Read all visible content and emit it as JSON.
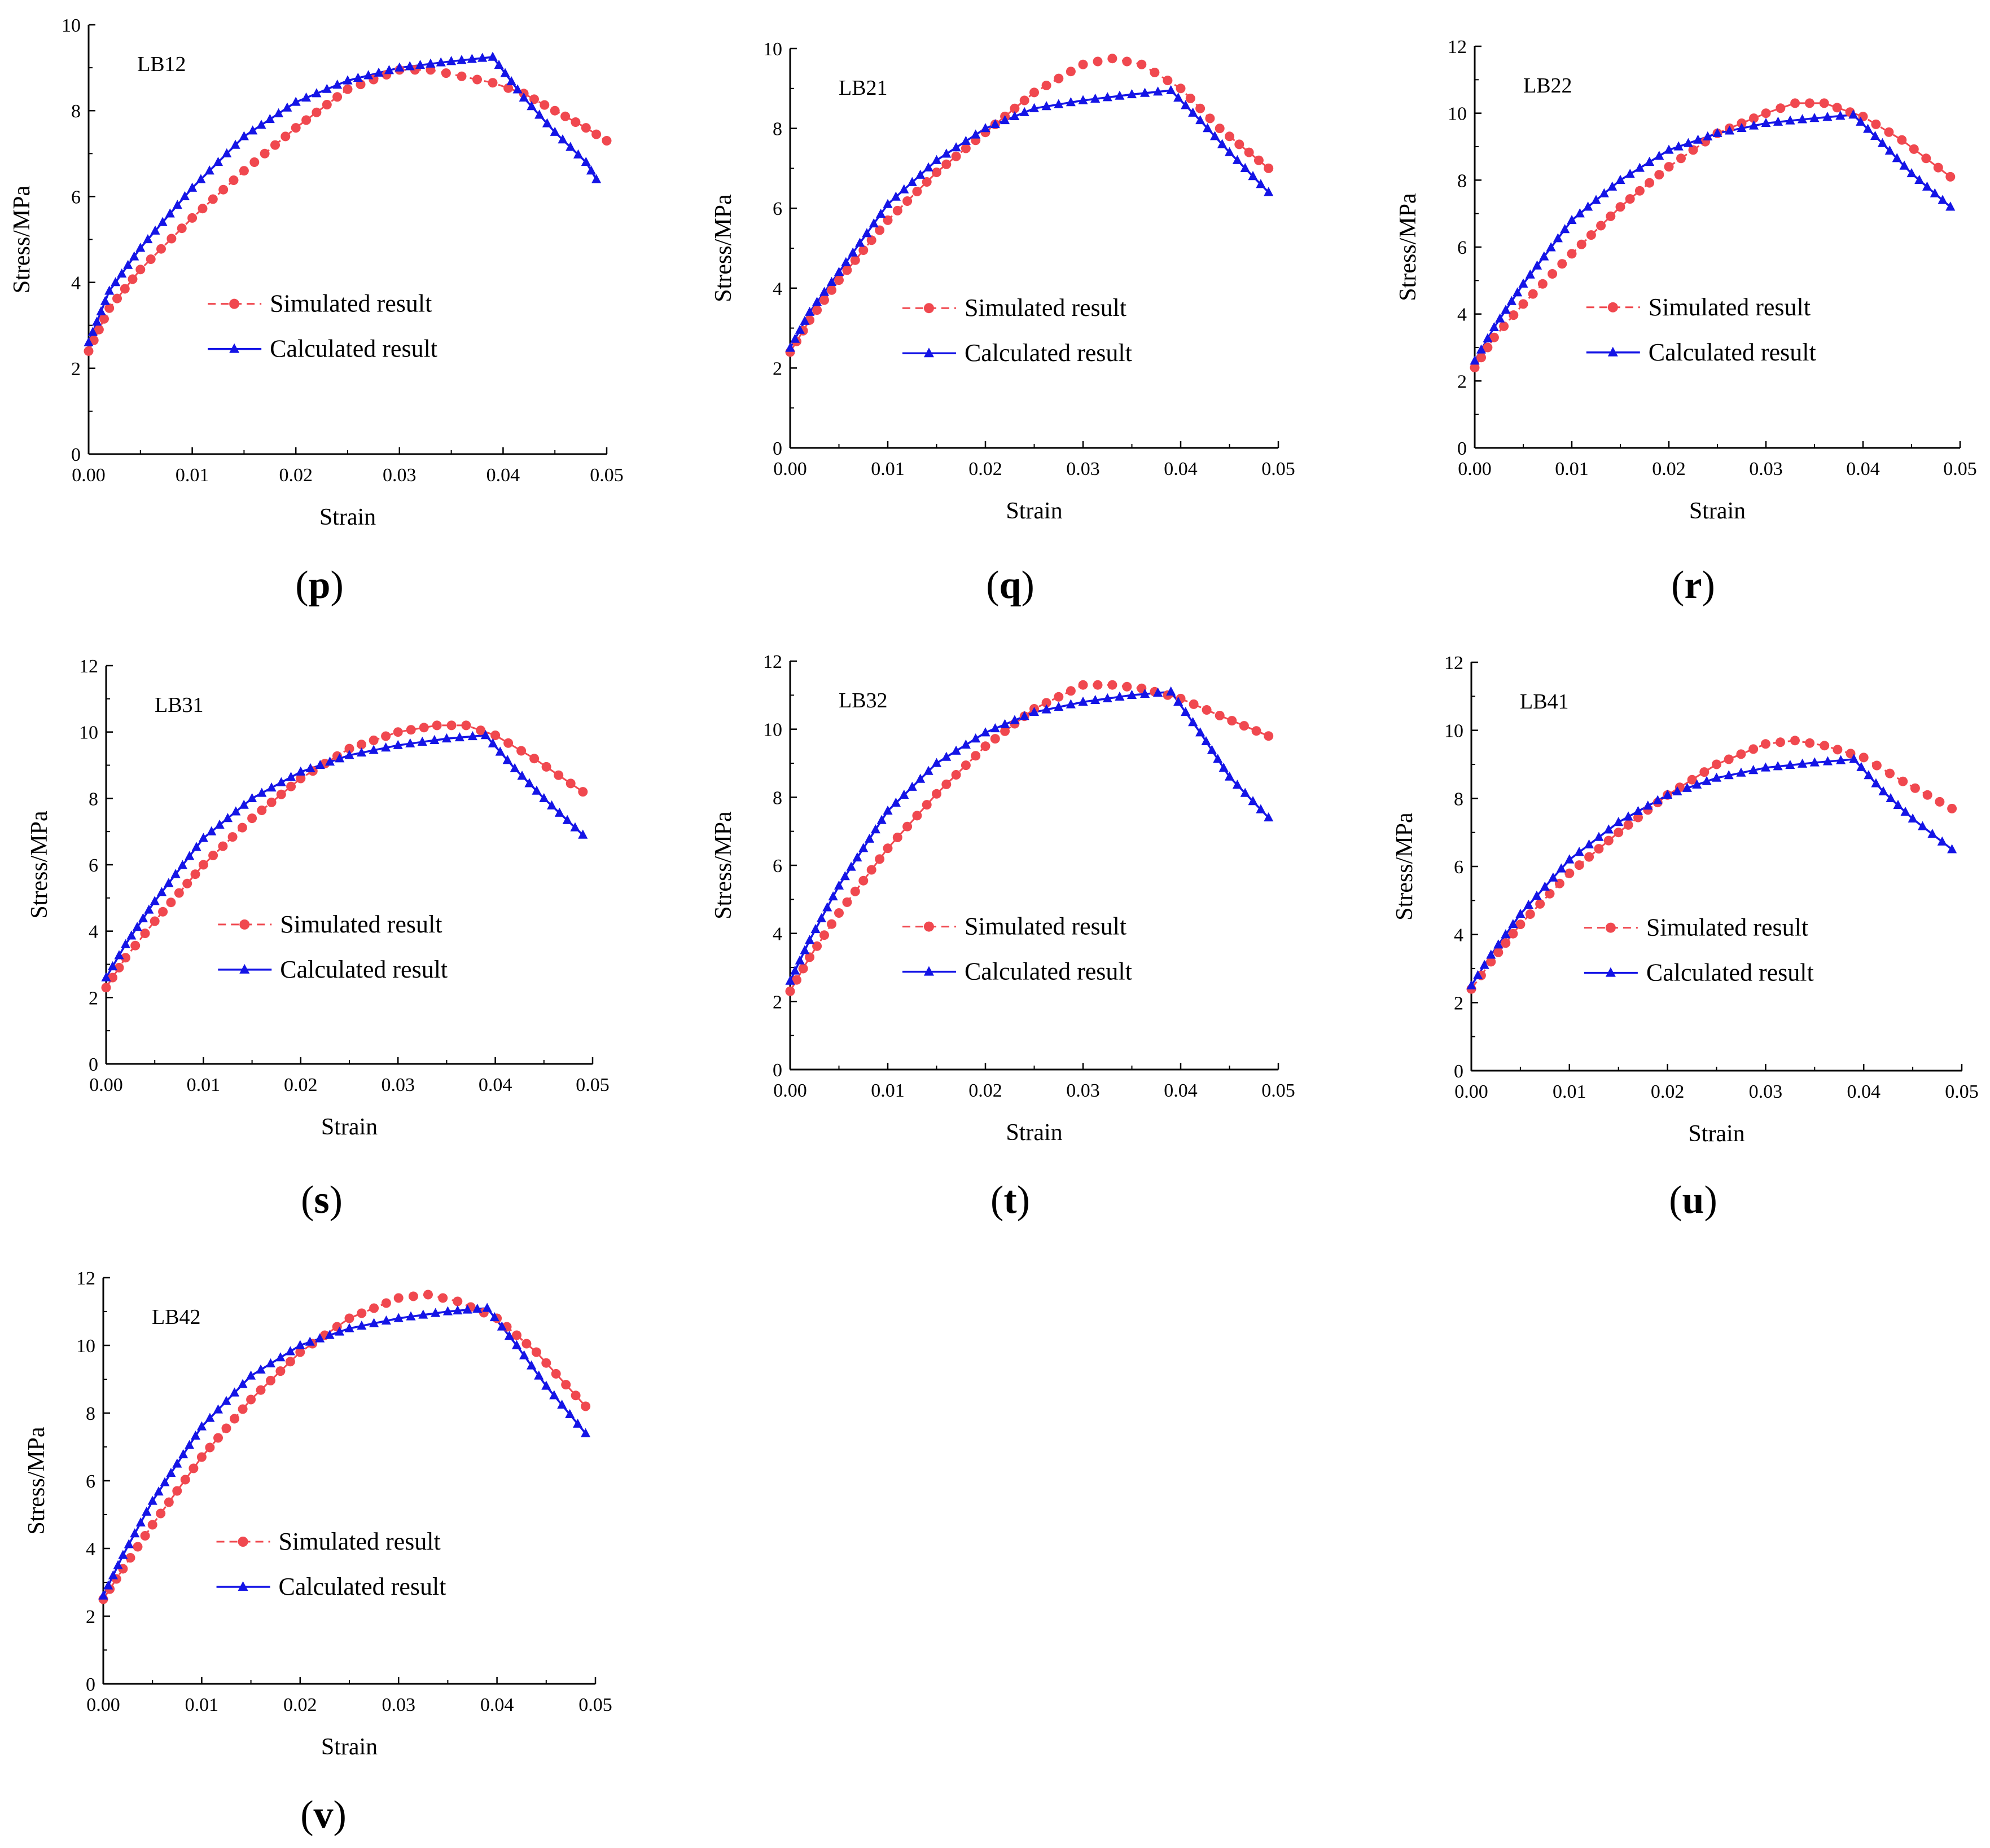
{
  "colors": {
    "simulated": "#f0484f",
    "calculated": "#1414e6",
    "axis": "#000000"
  },
  "legend": {
    "simulated_label": "Simulated result",
    "calculated_label": "Calculated result"
  },
  "axis_labels": {
    "x": "Strain",
    "y": "Stress/MPa"
  },
  "chart_data": [
    {
      "type": "line",
      "panel": "p",
      "specimen": "LB12",
      "xlabel": "Strain",
      "ylabel": "Stress/MPa",
      "xlim": [
        0,
        0.05
      ],
      "ylim": [
        0,
        10
      ],
      "xticks": [
        "0.00",
        "0.01",
        "0.02",
        "0.03",
        "0.04",
        "0.05"
      ],
      "yticks": [
        "0",
        "2",
        "4",
        "6",
        "8",
        "10"
      ],
      "series": [
        {
          "name": "Simulated result",
          "x": [
            0.0,
            0.002,
            0.005,
            0.01,
            0.015,
            0.02,
            0.025,
            0.03,
            0.033,
            0.036,
            0.039,
            0.042,
            0.045,
            0.048,
            0.05
          ],
          "y": [
            2.4,
            3.4,
            4.3,
            5.5,
            6.6,
            7.6,
            8.5,
            8.95,
            8.95,
            8.8,
            8.65,
            8.4,
            8.0,
            7.6,
            7.3
          ]
        },
        {
          "name": "Calculated result",
          "x": [
            0.0,
            0.002,
            0.005,
            0.01,
            0.015,
            0.02,
            0.025,
            0.03,
            0.035,
            0.039,
            0.042,
            0.045,
            0.048,
            0.049
          ],
          "y": [
            2.6,
            3.8,
            4.8,
            6.2,
            7.4,
            8.2,
            8.7,
            9.0,
            9.15,
            9.25,
            8.3,
            7.5,
            6.8,
            6.4
          ]
        }
      ]
    },
    {
      "type": "line",
      "panel": "q",
      "specimen": "LB21",
      "xlabel": "Strain",
      "ylabel": "Stress/MPa",
      "xlim": [
        0,
        0.05
      ],
      "ylim": [
        0,
        10
      ],
      "xticks": [
        "0.00",
        "0.01",
        "0.02",
        "0.03",
        "0.04",
        "0.05"
      ],
      "yticks": [
        "0",
        "2",
        "4",
        "6",
        "8",
        "10"
      ],
      "series": [
        {
          "name": "Simulated result",
          "x": [
            0.0,
            0.002,
            0.005,
            0.01,
            0.015,
            0.02,
            0.025,
            0.03,
            0.033,
            0.036,
            0.04,
            0.044,
            0.049
          ],
          "y": [
            2.4,
            3.2,
            4.2,
            5.7,
            6.9,
            7.9,
            8.9,
            9.6,
            9.75,
            9.6,
            9.0,
            8.0,
            7.0
          ]
        },
        {
          "name": "Calculated result",
          "x": [
            0.0,
            0.002,
            0.005,
            0.01,
            0.015,
            0.02,
            0.025,
            0.03,
            0.035,
            0.039,
            0.042,
            0.045,
            0.049
          ],
          "y": [
            2.5,
            3.4,
            4.4,
            6.1,
            7.2,
            8.0,
            8.5,
            8.7,
            8.85,
            8.95,
            8.2,
            7.4,
            6.4
          ]
        }
      ]
    },
    {
      "type": "line",
      "panel": "r",
      "specimen": "LB22",
      "xlabel": "Strain",
      "ylabel": "Stress/MPa",
      "xlim": [
        0,
        0.05
      ],
      "ylim": [
        0,
        12
      ],
      "xticks": [
        "0.00",
        "0.01",
        "0.02",
        "0.03",
        "0.04",
        "0.05"
      ],
      "yticks": [
        "0",
        "2",
        "4",
        "6",
        "8",
        "10",
        "12"
      ],
      "series": [
        {
          "name": "Simulated result",
          "x": [
            0.0,
            0.002,
            0.005,
            0.01,
            0.015,
            0.02,
            0.025,
            0.03,
            0.033,
            0.036,
            0.04,
            0.044,
            0.049
          ],
          "y": [
            2.4,
            3.3,
            4.3,
            5.8,
            7.2,
            8.4,
            9.4,
            10.0,
            10.3,
            10.3,
            9.9,
            9.2,
            8.1
          ]
        },
        {
          "name": "Calculated result",
          "x": [
            0.0,
            0.002,
            0.005,
            0.01,
            0.015,
            0.02,
            0.025,
            0.03,
            0.035,
            0.039,
            0.042,
            0.045,
            0.049
          ],
          "y": [
            2.6,
            3.6,
            4.9,
            6.8,
            8.0,
            8.9,
            9.4,
            9.7,
            9.85,
            9.95,
            9.1,
            8.2,
            7.2
          ]
        }
      ]
    },
    {
      "type": "line",
      "panel": "s",
      "specimen": "LB31",
      "xlabel": "Strain",
      "ylabel": "Stress/MPa",
      "xlim": [
        0,
        0.05
      ],
      "ylim": [
        0,
        12
      ],
      "xticks": [
        "0.00",
        "0.01",
        "0.02",
        "0.03",
        "0.04",
        "0.05"
      ],
      "yticks": [
        "0",
        "2",
        "4",
        "6",
        "8",
        "10",
        "12"
      ],
      "series": [
        {
          "name": "Simulated result",
          "x": [
            0.0,
            0.002,
            0.005,
            0.01,
            0.015,
            0.02,
            0.025,
            0.03,
            0.034,
            0.037,
            0.04,
            0.044,
            0.049
          ],
          "y": [
            2.3,
            3.2,
            4.3,
            6.0,
            7.4,
            8.6,
            9.5,
            10.0,
            10.2,
            10.2,
            9.9,
            9.2,
            8.2
          ]
        },
        {
          "name": "Calculated result",
          "x": [
            0.0,
            0.002,
            0.005,
            0.01,
            0.015,
            0.02,
            0.025,
            0.03,
            0.035,
            0.039,
            0.042,
            0.045,
            0.049
          ],
          "y": [
            2.6,
            3.6,
            4.9,
            6.8,
            8.0,
            8.8,
            9.3,
            9.6,
            9.8,
            9.9,
            8.9,
            8.0,
            6.9
          ]
        }
      ]
    },
    {
      "type": "line",
      "panel": "t",
      "specimen": "LB32",
      "xlabel": "Strain",
      "ylabel": "Stress/MPa",
      "xlim": [
        0,
        0.05
      ],
      "ylim": [
        0,
        12
      ],
      "xticks": [
        "0.00",
        "0.01",
        "0.02",
        "0.03",
        "0.04",
        "0.05"
      ],
      "yticks": [
        "0",
        "2",
        "4",
        "6",
        "8",
        "10",
        "12"
      ],
      "series": [
        {
          "name": "Simulated result",
          "x": [
            0.0,
            0.002,
            0.005,
            0.01,
            0.015,
            0.02,
            0.025,
            0.03,
            0.033,
            0.036,
            0.04,
            0.044,
            0.049
          ],
          "y": [
            2.3,
            3.3,
            4.6,
            6.5,
            8.1,
            9.5,
            10.6,
            11.3,
            11.3,
            11.2,
            10.9,
            10.4,
            9.8
          ]
        },
        {
          "name": "Calculated result",
          "x": [
            0.0,
            0.002,
            0.005,
            0.01,
            0.015,
            0.02,
            0.025,
            0.03,
            0.035,
            0.039,
            0.042,
            0.045,
            0.049
          ],
          "y": [
            2.6,
            3.8,
            5.4,
            7.6,
            9.0,
            9.9,
            10.5,
            10.8,
            11.0,
            11.1,
            9.9,
            8.6,
            7.4
          ]
        }
      ]
    },
    {
      "type": "line",
      "panel": "u",
      "specimen": "LB41",
      "xlabel": "Strain",
      "ylabel": "Stress/MPa",
      "xlim": [
        0,
        0.05
      ],
      "ylim": [
        0,
        12
      ],
      "xticks": [
        "0.00",
        "0.01",
        "0.02",
        "0.03",
        "0.04",
        "0.05"
      ],
      "yticks": [
        "0",
        "2",
        "4",
        "6",
        "8",
        "10",
        "12"
      ],
      "series": [
        {
          "name": "Simulated result",
          "x": [
            0.0,
            0.002,
            0.005,
            0.01,
            0.015,
            0.02,
            0.025,
            0.03,
            0.033,
            0.036,
            0.04,
            0.044,
            0.049
          ],
          "y": [
            2.4,
            3.2,
            4.3,
            5.8,
            7.0,
            8.1,
            9.0,
            9.6,
            9.7,
            9.55,
            9.2,
            8.5,
            7.7
          ]
        },
        {
          "name": "Calculated result",
          "x": [
            0.0,
            0.002,
            0.005,
            0.01,
            0.015,
            0.02,
            0.025,
            0.03,
            0.035,
            0.039,
            0.042,
            0.045,
            0.049
          ],
          "y": [
            2.5,
            3.4,
            4.6,
            6.2,
            7.3,
            8.1,
            8.6,
            8.9,
            9.05,
            9.15,
            8.2,
            7.4,
            6.5
          ]
        }
      ]
    },
    {
      "type": "line",
      "panel": "v",
      "specimen": "LB42",
      "xlabel": "Strain",
      "ylabel": "Stress/MPa",
      "xlim": [
        0,
        0.05
      ],
      "ylim": [
        0,
        12
      ],
      "xticks": [
        "0.00",
        "0.01",
        "0.02",
        "0.03",
        "0.04",
        "0.05"
      ],
      "yticks": [
        "0",
        "2",
        "4",
        "6",
        "8",
        "10",
        "12"
      ],
      "series": [
        {
          "name": "Simulated result",
          "x": [
            0.0,
            0.002,
            0.005,
            0.01,
            0.015,
            0.02,
            0.025,
            0.03,
            0.033,
            0.036,
            0.04,
            0.044,
            0.049
          ],
          "y": [
            2.5,
            3.4,
            4.7,
            6.7,
            8.4,
            9.8,
            10.8,
            11.4,
            11.5,
            11.3,
            10.8,
            9.8,
            8.2
          ]
        },
        {
          "name": "Calculated result",
          "x": [
            0.0,
            0.002,
            0.005,
            0.01,
            0.015,
            0.02,
            0.025,
            0.03,
            0.035,
            0.039,
            0.042,
            0.045,
            0.049
          ],
          "y": [
            2.6,
            3.8,
            5.4,
            7.6,
            9.1,
            10.0,
            10.5,
            10.8,
            11.0,
            11.1,
            10.0,
            8.8,
            7.4
          ]
        }
      ]
    }
  ]
}
